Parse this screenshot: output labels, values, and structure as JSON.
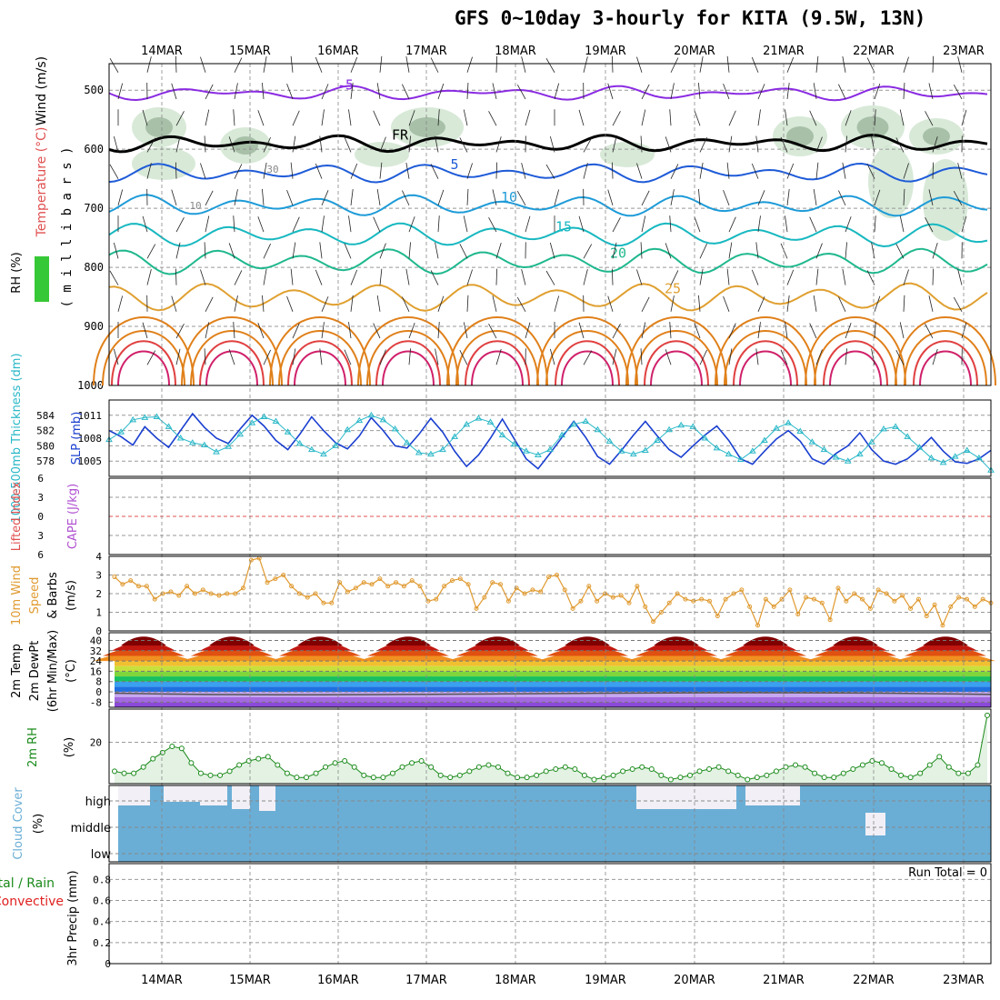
{
  "title": "GFS 0~10day 3-hourly for KITA (9.5W, 13N)",
  "chart_data": {
    "type": "line",
    "dates": [
      "14MAR",
      "15MAR",
      "16MAR",
      "17MAR",
      "18MAR",
      "19MAR",
      "20MAR",
      "21MAR",
      "22MAR",
      "23MAR"
    ],
    "upper_air": {
      "ylabel_parts": [
        "RH (%)",
        "Temperature (°C)",
        "Wind (m/s)",
        "( m i l l i b a r s )"
      ],
      "pressure_ticks": [
        "500",
        "600",
        "700",
        "800",
        "900",
        "1000"
      ],
      "temperature_contours": [
        {
          "label": "-5",
          "level_hPa": 505
        },
        {
          "label": "FR",
          "level_hPa": 590
        },
        {
          "label": "5",
          "level_hPa": 640
        },
        {
          "label": "10",
          "level_hPa": 695
        },
        {
          "label": "15",
          "level_hPa": 745
        },
        {
          "label": "20",
          "level_hPa": 790
        },
        {
          "label": "25",
          "level_hPa": 850
        }
      ],
      "rh_labels": [
        "10",
        "30"
      ]
    },
    "thickness_slp": {
      "ylabel_left": "1000-500mb Thickness (dm)",
      "ylabel_right": "SLP (mb)",
      "left_ticks": [
        "584",
        "582",
        "580",
        "578"
      ],
      "right_ticks": [
        "1011",
        "1008",
        "1005"
      ],
      "slp_series": [
        1009.0,
        1008.2,
        1007.1,
        1009.5,
        1008.0,
        1006.8,
        1009.0,
        1011.2,
        1009.4,
        1008.0,
        1007.3,
        1009.2,
        1011.0,
        1009.6,
        1007.7,
        1006.5,
        1008.5,
        1010.8,
        1009.0,
        1007.4,
        1006.6,
        1008.3,
        1010.7,
        1009.0,
        1007.0,
        1006.7,
        1008.5,
        1010.6,
        1008.8,
        1006.3,
        1004.3,
        1005.8,
        1008.0,
        1010.5,
        1007.9,
        1005.3,
        1004.0,
        1006.0,
        1008.1,
        1010.2,
        1008.1,
        1005.6,
        1004.6,
        1006.4,
        1008.4,
        1010.2,
        1008.3,
        1006.5,
        1005.5,
        1007.0,
        1008.4,
        1009.6,
        1007.7,
        1005.3,
        1004.6,
        1006.3,
        1007.9,
        1009.0,
        1007.6,
        1005.3,
        1004.6,
        1006.0,
        1007.0,
        1008.7,
        1006.5,
        1005.0,
        1004.6,
        1005.3,
        1006.6,
        1008.1,
        1006.3,
        1004.9,
        1004.7,
        1005.3,
        1006.4
      ],
      "thickness_series": [
        580.8,
        581.8,
        583.4,
        583.7,
        583.8,
        582.5,
        581.0,
        580.4,
        580.1,
        579.2,
        579.9,
        581.5,
        583.0,
        583.8,
        583.2,
        581.8,
        580.3,
        579.5,
        578.9,
        580.0,
        582.1,
        583.3,
        584.0,
        583.4,
        582.2,
        580.4,
        579.1,
        578.9,
        579.5,
        581.2,
        582.8,
        583.6,
        583.1,
        581.4,
        580.2,
        579.3,
        578.8,
        579.5,
        581.4,
        582.8,
        583.2,
        582.1,
        580.6,
        579.3,
        578.9,
        579.4,
        580.7,
        582.1,
        582.7,
        582.5,
        581.0,
        579.7,
        578.9,
        578.2,
        579.3,
        580.7,
        582.3,
        583.0,
        581.9,
        580.5,
        579.5,
        578.5,
        578.0,
        578.9,
        580.5,
        582.2,
        582.5,
        581.2,
        579.8,
        578.4,
        577.8,
        578.6,
        579.4,
        578.4,
        576.8
      ]
    },
    "cape_li": {
      "ylabel_parts": [
        "Lifted Index",
        "CAPE (J/kg)"
      ],
      "ticks": [
        "6",
        "3",
        "0",
        "3",
        "6"
      ],
      "li_values": [
        0
      ]
    },
    "wind10m": {
      "ylabel_parts": [
        "10m Wind",
        "Speed",
        "& Barbs",
        "(m/s)"
      ],
      "ticks": [
        "4",
        "3",
        "2",
        "1",
        "0"
      ],
      "speed_series": [
        2.9,
        2.5,
        2.7,
        2.4,
        2.4,
        1.7,
        2.0,
        2.1,
        1.9,
        2.4,
        2.0,
        2.2,
        2.0,
        1.9,
        2.0,
        2.0,
        2.3,
        3.8,
        3.9,
        2.6,
        2.8,
        3.0,
        2.4,
        2.0,
        1.8,
        2.0,
        1.5,
        1.5,
        2.6,
        2.1,
        2.3,
        2.6,
        2.5,
        2.8,
        2.4,
        2.6,
        2.4,
        2.7,
        2.4,
        1.6,
        1.7,
        2.4,
        2.7,
        2.8,
        2.5,
        1.2,
        1.8,
        2.6,
        2.5,
        1.6,
        2.3,
        2.0,
        2.2,
        2.1,
        2.9,
        3.0,
        2.2,
        1.2,
        1.6,
        2.4,
        1.6,
        2.0,
        1.8,
        1.9,
        1.5,
        2.4,
        1.3,
        0.5,
        1.0,
        1.5,
        2.0,
        1.7,
        1.6,
        1.7,
        1.6,
        0.8,
        1.7,
        2.0,
        2.2,
        1.3,
        0.3,
        1.7,
        1.3,
        1.7,
        2.2,
        0.9,
        1.8,
        1.7,
        1.5,
        0.6,
        2.3,
        1.6,
        2.0,
        1.7,
        1.2,
        2.2,
        2.0,
        1.6,
        1.9,
        1.2,
        1.7,
        0.8,
        1.4,
        0.3,
        1.3,
        1.8,
        1.7,
        1.3,
        1.7,
        1.5
      ]
    },
    "temp2m": {
      "ylabel_parts": [
        "2m Temp",
        "2m DewPt",
        "(6hr Min/Max)",
        "(°C)"
      ],
      "ticks": [
        "40",
        "32",
        "24",
        "16",
        "8",
        "0",
        "-8"
      ],
      "tmax_daily": [
        40,
        40,
        40,
        40,
        40,
        40,
        40,
        40,
        40,
        40
      ],
      "tmin_daily": [
        24,
        24,
        24,
        24,
        24,
        24,
        24,
        24,
        24,
        24
      ],
      "dewpoint_approx": -1
    },
    "rh2m": {
      "ylabel_parts": [
        "2m RH",
        "(%)"
      ],
      "ticks": [
        "20"
      ],
      "series": [
        6,
        5,
        5,
        8,
        12,
        15,
        18,
        17,
        10,
        5,
        4,
        4,
        6,
        9,
        11,
        12,
        13,
        9,
        5,
        3,
        3,
        5,
        8,
        10,
        11,
        8,
        4,
        3,
        3,
        5,
        8,
        10,
        11,
        8,
        4,
        3,
        4,
        6,
        8,
        9,
        8,
        5,
        3,
        3,
        4,
        6,
        7,
        8,
        7,
        4,
        2,
        3,
        4,
        6,
        7,
        8,
        7,
        4,
        2,
        3,
        4,
        6,
        7,
        8,
        6,
        4,
        2,
        3,
        4,
        6,
        8,
        9,
        8,
        5,
        3,
        3,
        5,
        7,
        9,
        11,
        10,
        7,
        4,
        3,
        5,
        9,
        13,
        8,
        5,
        5,
        9,
        33
      ]
    },
    "cloud_cover": {
      "ylabel_parts": [
        "Cloud Cover",
        "(%)"
      ],
      "levels": [
        "high",
        "middle",
        "low"
      ]
    },
    "precip": {
      "ylabel_parts": [
        "Total / Rain",
        "Convective",
        "3hr Precip (mm)"
      ],
      "ticks": [
        "0.8",
        "0.6",
        "0.4",
        "0.2",
        "0"
      ],
      "run_total_label": "Run Total = 0"
    }
  }
}
